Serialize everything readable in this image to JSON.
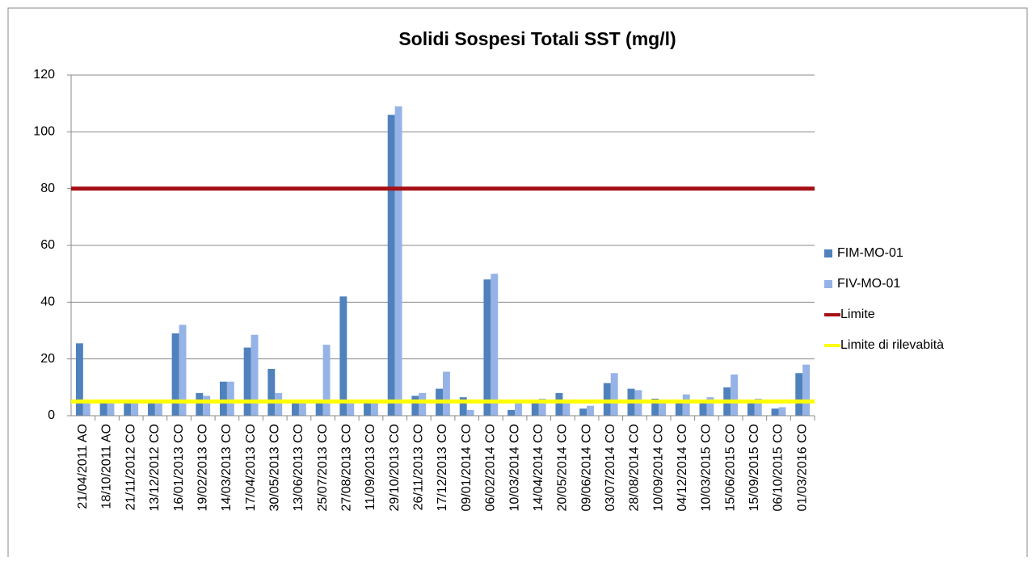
{
  "chart_data": {
    "type": "bar",
    "title": "Solidi Sospesi Totali SST (mg/l)",
    "categories": [
      "21/04/2011 AO",
      "18/10/2011 AO",
      "21/11/2012 CO",
      "13/12/2012 CO",
      "16/01/2013 CO",
      "19/02/2013 CO",
      "14/03/2013 CO",
      "17/04/2013 CO",
      "30/05/2013 CO",
      "13/06/2013 CO",
      "25/07/2013 CO",
      "27/08/2013 CO",
      "11/09/2013 CO",
      "29/10/2013 CO",
      "26/11/2013 CO",
      "17/12/2013 CO",
      "09/01/2014 CO",
      "06/02/2014 CO",
      "10/03/2014 CO",
      "14/04/2014 CO",
      "20/05/2014 CO",
      "09/06/2014 CO",
      "03/07/2014 CO",
      "28/08/2014 CO",
      "10/09/2014 CO",
      "04/12/2014 CO",
      "10/03/2015 CO",
      "15/06/2015 CO",
      "15/09/2015 CO",
      "06/10/2015 CO",
      "01/03/2016 CO"
    ],
    "series": [
      {
        "name": "FIM-MO-01",
        "color": "#4f81bd",
        "values": [
          25.5,
          5,
          5,
          5,
          29,
          8,
          12,
          24,
          16.5,
          5,
          5,
          42,
          5,
          106,
          7,
          9.5,
          6.5,
          48,
          2,
          5,
          8,
          2.5,
          11.5,
          9.5,
          6,
          5,
          5,
          10,
          5,
          2.5,
          15
        ]
      },
      {
        "name": "FIV-MO-01",
        "color": "#95b3e6",
        "values": [
          5,
          5,
          5,
          5,
          32,
          7,
          12,
          28.5,
          8,
          5,
          25,
          5,
          5,
          109,
          8,
          15.5,
          2,
          50,
          5,
          6,
          5,
          3.5,
          15,
          9,
          5,
          7.5,
          6.5,
          14.5,
          6,
          3,
          18
        ]
      }
    ],
    "reference_lines": [
      {
        "name": "Limite",
        "color": "#a50f15",
        "value": 80
      },
      {
        "name": "Limite di rilevabità",
        "color": "#ffff00",
        "value": 5
      }
    ],
    "ylim": [
      0,
      120
    ],
    "yticks": [
      0,
      20,
      40,
      60,
      80,
      100,
      120
    ],
    "grid": true,
    "legend": "right"
  }
}
